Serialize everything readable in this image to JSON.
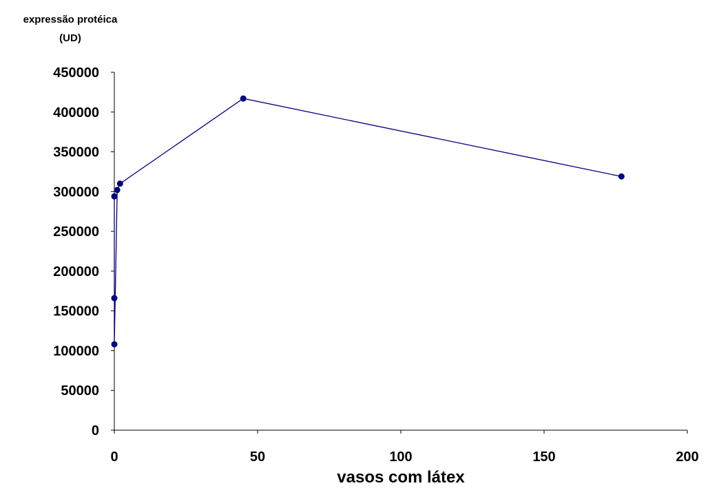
{
  "chart_data": {
    "type": "scatter",
    "ylabel_lines": [
      "expressão protéica",
      "(UD)"
    ],
    "xlabel": "vasos com látex",
    "xlim": [
      0,
      200
    ],
    "ylim": [
      0,
      450000
    ],
    "x_ticks": [
      0,
      50,
      100,
      150,
      200
    ],
    "y_ticks": [
      0,
      50000,
      100000,
      150000,
      200000,
      250000,
      300000,
      350000,
      400000,
      450000
    ],
    "grid": false,
    "legend": "none",
    "series": [
      {
        "color": "#000080",
        "marker": "circle",
        "connected": true,
        "points": [
          {
            "x": 0,
            "y": 294000
          },
          {
            "x": 0,
            "y": 166000
          },
          {
            "x": 0,
            "y": 108000
          },
          {
            "x": 1,
            "y": 302000
          },
          {
            "x": 2,
            "y": 310000
          },
          {
            "x": 45,
            "y": 417000
          },
          {
            "x": 177,
            "y": 319000
          }
        ]
      }
    ]
  }
}
